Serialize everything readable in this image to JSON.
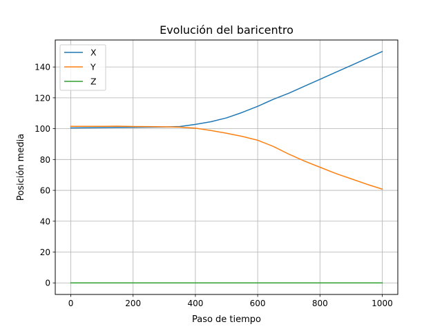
{
  "chart_data": {
    "type": "line",
    "title": "Evolución del baricentro",
    "xlabel": "Paso de tiempo",
    "ylabel": "Posición media",
    "xlim": [
      -50,
      1050
    ],
    "ylim": [
      -7.5,
      157.5
    ],
    "xticks": [
      0,
      200,
      400,
      600,
      800,
      1000
    ],
    "yticks": [
      0,
      20,
      40,
      60,
      80,
      100,
      120,
      140
    ],
    "grid": true,
    "legend_position": "top-left",
    "series": [
      {
        "name": "X",
        "color": "#1f77b4",
        "x": [
          0,
          50,
          100,
          150,
          200,
          250,
          300,
          350,
          400,
          450,
          500,
          550,
          600,
          650,
          700,
          750,
          800,
          850,
          900,
          950,
          1000
        ],
        "y": [
          100.5,
          100.6,
          100.7,
          100.8,
          100.9,
          101.0,
          101.1,
          101.4,
          102.8,
          104.5,
          107.0,
          110.5,
          114.5,
          119.0,
          123.0,
          127.5,
          132.0,
          136.5,
          141.0,
          145.5,
          150.0
        ]
      },
      {
        "name": "Y",
        "color": "#ff7f0e",
        "x": [
          0,
          50,
          100,
          150,
          200,
          250,
          300,
          350,
          400,
          450,
          500,
          550,
          600,
          650,
          700,
          750,
          800,
          850,
          900,
          950,
          1000
        ],
        "y": [
          101.5,
          101.5,
          101.5,
          101.6,
          101.4,
          101.3,
          101.2,
          101.0,
          100.3,
          98.8,
          97.0,
          95.0,
          92.5,
          88.5,
          83.5,
          79.0,
          75.0,
          71.0,
          67.5,
          64.0,
          60.8
        ]
      },
      {
        "name": "Z",
        "color": "#2ca02c",
        "x": [
          0,
          50,
          100,
          150,
          200,
          250,
          300,
          350,
          400,
          450,
          500,
          550,
          600,
          650,
          700,
          750,
          800,
          850,
          900,
          950,
          1000
        ],
        "y": [
          0,
          0,
          0,
          0,
          0,
          0,
          0,
          0,
          0,
          0,
          0,
          0,
          0,
          0,
          0,
          0,
          0,
          0,
          0,
          0,
          0
        ]
      }
    ]
  }
}
